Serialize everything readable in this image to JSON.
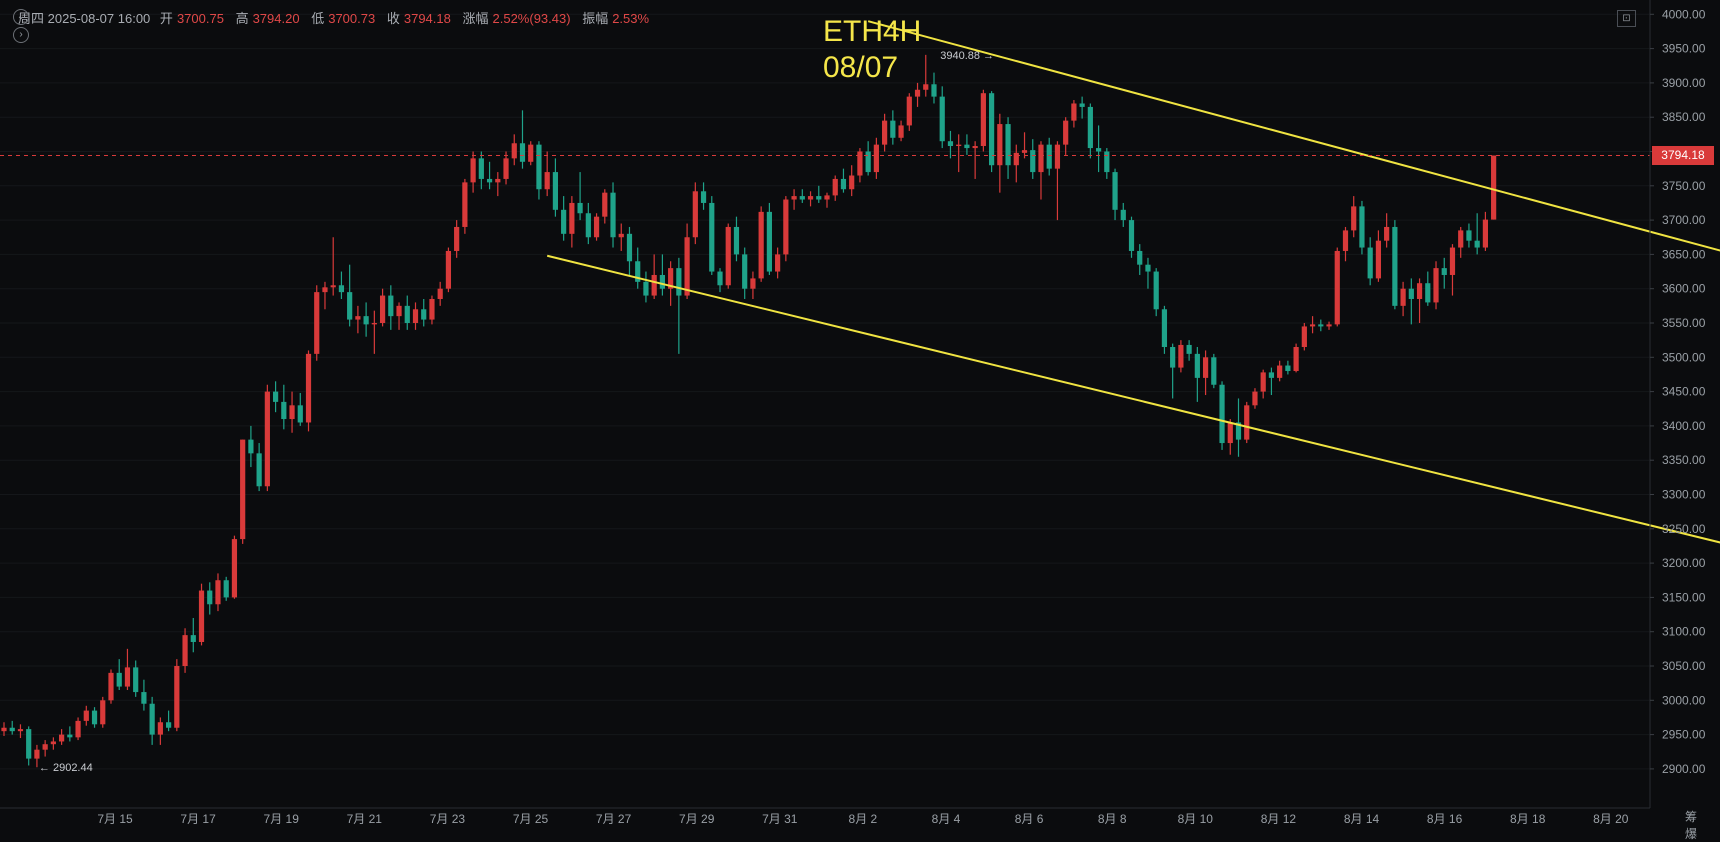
{
  "info_bar": {
    "day": "周四",
    "datetime": "2025-08-07 16:00",
    "open_label": "开",
    "open": "3700.75",
    "high_label": "高",
    "high": "3794.20",
    "low_label": "低",
    "low": "3700.73",
    "close_label": "收",
    "close": "3794.18",
    "change_label": "涨幅",
    "change": "2.52%(93.43)",
    "amplitude_label": "振幅",
    "amplitude": "2.53%"
  },
  "title_line1": "ETH4H",
  "title_line2": "08/07",
  "current_price": "3794.18",
  "corner_label": "筹 爆",
  "colors": {
    "up": "#d93a3a",
    "down": "#1fa38a",
    "trend": "#f0e442",
    "bg": "#0b0c0e",
    "title": "#f5e64a"
  },
  "chart_data": {
    "type": "candlestick",
    "interval": "4H",
    "x_ticks": [
      "7月 15",
      "7月 17",
      "7月 19",
      "7月 21",
      "7月 23",
      "7月 25",
      "7月 27",
      "7月 29",
      "7月 31",
      "8月 2",
      "8月 4",
      "8月 6",
      "8月 8",
      "8月 10",
      "8月 12",
      "8月 14",
      "8月 16",
      "8月 18",
      "8月 20"
    ],
    "y_ticks": [
      "4000.00",
      "3950.00",
      "3900.00",
      "3850.00",
      "3800.00",
      "3750.00",
      "3700.00",
      "3650.00",
      "3600.00",
      "3550.00",
      "3500.00",
      "3450.00",
      "3400.00",
      "3350.00",
      "3300.00",
      "3250.00",
      "3200.00",
      "3150.00",
      "3100.00",
      "3050.00",
      "3000.00",
      "2950.00",
      "2900.00"
    ],
    "ylim": [
      2860,
      4010
    ],
    "start_date": "7月 14",
    "annotations": [
      {
        "text": "3940.88",
        "candle": 122,
        "price": 3940.88,
        "side": "left"
      },
      {
        "text": "2902.44",
        "candle": 4,
        "price": 2902.44,
        "side": "right"
      }
    ],
    "trendlines": [
      {
        "from": {
          "candle": 105,
          "price": 3990
        },
        "to": {
          "candle": 253,
          "price": 3512
        }
      },
      {
        "from": {
          "candle": 66,
          "price": 3648
        },
        "to": {
          "candle": 229,
          "price": 3170
        }
      }
    ],
    "candles": [
      {
        "o": 2955,
        "h": 2968,
        "l": 2948,
        "c": 2960
      },
      {
        "o": 2960,
        "h": 2970,
        "l": 2950,
        "c": 2955
      },
      {
        "o": 2955,
        "h": 2965,
        "l": 2945,
        "c": 2958
      },
      {
        "o": 2958,
        "h": 2962,
        "l": 2905,
        "c": 2915
      },
      {
        "o": 2915,
        "h": 2935,
        "l": 2902.44,
        "c": 2928
      },
      {
        "o": 2928,
        "h": 2942,
        "l": 2918,
        "c": 2936
      },
      {
        "o": 2936,
        "h": 2946,
        "l": 2928,
        "c": 2940
      },
      {
        "o": 2940,
        "h": 2958,
        "l": 2935,
        "c": 2950
      },
      {
        "o": 2950,
        "h": 2962,
        "l": 2940,
        "c": 2946
      },
      {
        "o": 2946,
        "h": 2975,
        "l": 2942,
        "c": 2970
      },
      {
        "o": 2970,
        "h": 2992,
        "l": 2963,
        "c": 2985
      },
      {
        "o": 2985,
        "h": 2990,
        "l": 2960,
        "c": 2965
      },
      {
        "o": 2965,
        "h": 3005,
        "l": 2960,
        "c": 3000
      },
      {
        "o": 3000,
        "h": 3045,
        "l": 2995,
        "c": 3040
      },
      {
        "o": 3040,
        "h": 3060,
        "l": 3015,
        "c": 3020
      },
      {
        "o": 3020,
        "h": 3075,
        "l": 3015,
        "c": 3048
      },
      {
        "o": 3048,
        "h": 3058,
        "l": 3005,
        "c": 3012
      },
      {
        "o": 3012,
        "h": 3030,
        "l": 2985,
        "c": 2995
      },
      {
        "o": 2995,
        "h": 3005,
        "l": 2935,
        "c": 2950
      },
      {
        "o": 2950,
        "h": 2975,
        "l": 2935,
        "c": 2968
      },
      {
        "o": 2968,
        "h": 2985,
        "l": 2955,
        "c": 2960
      },
      {
        "o": 2960,
        "h": 3060,
        "l": 2955,
        "c": 3050
      },
      {
        "o": 3050,
        "h": 3105,
        "l": 3040,
        "c": 3095
      },
      {
        "o": 3095,
        "h": 3120,
        "l": 3070,
        "c": 3085
      },
      {
        "o": 3085,
        "h": 3170,
        "l": 3080,
        "c": 3160
      },
      {
        "o": 3160,
        "h": 3172,
        "l": 3125,
        "c": 3140
      },
      {
        "o": 3140,
        "h": 3185,
        "l": 3130,
        "c": 3175
      },
      {
        "o": 3175,
        "h": 3180,
        "l": 3145,
        "c": 3150
      },
      {
        "o": 3150,
        "h": 3240,
        "l": 3148,
        "c": 3235
      },
      {
        "o": 3235,
        "h": 3380,
        "l": 3228,
        "c": 3380
      },
      {
        "o": 3380,
        "h": 3400,
        "l": 3340,
        "c": 3360
      },
      {
        "o": 3360,
        "h": 3375,
        "l": 3305,
        "c": 3312
      },
      {
        "o": 3312,
        "h": 3460,
        "l": 3305,
        "c": 3450
      },
      {
        "o": 3450,
        "h": 3465,
        "l": 3420,
        "c": 3435
      },
      {
        "o": 3435,
        "h": 3460,
        "l": 3395,
        "c": 3410
      },
      {
        "o": 3410,
        "h": 3450,
        "l": 3390,
        "c": 3430
      },
      {
        "o": 3430,
        "h": 3448,
        "l": 3400,
        "c": 3405
      },
      {
        "o": 3405,
        "h": 3510,
        "l": 3392,
        "c": 3505
      },
      {
        "o": 3505,
        "h": 3605,
        "l": 3495,
        "c": 3595
      },
      {
        "o": 3595,
        "h": 3610,
        "l": 3570,
        "c": 3602
      },
      {
        "o": 3602,
        "h": 3675,
        "l": 3590,
        "c": 3605
      },
      {
        "o": 3605,
        "h": 3625,
        "l": 3585,
        "c": 3595
      },
      {
        "o": 3595,
        "h": 3635,
        "l": 3545,
        "c": 3555
      },
      {
        "o": 3555,
        "h": 3575,
        "l": 3535,
        "c": 3560
      },
      {
        "o": 3560,
        "h": 3580,
        "l": 3530,
        "c": 3548
      },
      {
        "o": 3548,
        "h": 3568,
        "l": 3505,
        "c": 3550
      },
      {
        "o": 3550,
        "h": 3600,
        "l": 3545,
        "c": 3590
      },
      {
        "o": 3590,
        "h": 3605,
        "l": 3540,
        "c": 3560
      },
      {
        "o": 3560,
        "h": 3580,
        "l": 3540,
        "c": 3575
      },
      {
        "o": 3575,
        "h": 3590,
        "l": 3540,
        "c": 3550
      },
      {
        "o": 3550,
        "h": 3580,
        "l": 3540,
        "c": 3570
      },
      {
        "o": 3570,
        "h": 3585,
        "l": 3545,
        "c": 3555
      },
      {
        "o": 3555,
        "h": 3590,
        "l": 3548,
        "c": 3585
      },
      {
        "o": 3585,
        "h": 3610,
        "l": 3575,
        "c": 3600
      },
      {
        "o": 3600,
        "h": 3660,
        "l": 3595,
        "c": 3655
      },
      {
        "o": 3655,
        "h": 3700,
        "l": 3645,
        "c": 3690
      },
      {
        "o": 3690,
        "h": 3760,
        "l": 3680,
        "c": 3755
      },
      {
        "o": 3755,
        "h": 3800,
        "l": 3740,
        "c": 3790
      },
      {
        "o": 3790,
        "h": 3800,
        "l": 3745,
        "c": 3760
      },
      {
        "o": 3760,
        "h": 3785,
        "l": 3745,
        "c": 3755
      },
      {
        "o": 3755,
        "h": 3770,
        "l": 3735,
        "c": 3760
      },
      {
        "o": 3760,
        "h": 3800,
        "l": 3752,
        "c": 3790
      },
      {
        "o": 3790,
        "h": 3825,
        "l": 3780,
        "c": 3812
      },
      {
        "o": 3812,
        "h": 3860,
        "l": 3775,
        "c": 3785
      },
      {
        "o": 3785,
        "h": 3815,
        "l": 3780,
        "c": 3810
      },
      {
        "o": 3810,
        "h": 3815,
        "l": 3730,
        "c": 3745
      },
      {
        "o": 3745,
        "h": 3800,
        "l": 3735,
        "c": 3770
      },
      {
        "o": 3770,
        "h": 3790,
        "l": 3705,
        "c": 3715
      },
      {
        "o": 3715,
        "h": 3735,
        "l": 3670,
        "c": 3680
      },
      {
        "o": 3680,
        "h": 3735,
        "l": 3660,
        "c": 3725
      },
      {
        "o": 3725,
        "h": 3770,
        "l": 3700,
        "c": 3710
      },
      {
        "o": 3710,
        "h": 3725,
        "l": 3665,
        "c": 3675
      },
      {
        "o": 3675,
        "h": 3710,
        "l": 3670,
        "c": 3705
      },
      {
        "o": 3705,
        "h": 3745,
        "l": 3695,
        "c": 3740
      },
      {
        "o": 3740,
        "h": 3755,
        "l": 3660,
        "c": 3675
      },
      {
        "o": 3675,
        "h": 3695,
        "l": 3655,
        "c": 3680
      },
      {
        "o": 3680,
        "h": 3690,
        "l": 3620,
        "c": 3640
      },
      {
        "o": 3640,
        "h": 3660,
        "l": 3600,
        "c": 3610
      },
      {
        "o": 3610,
        "h": 3625,
        "l": 3580,
        "c": 3590
      },
      {
        "o": 3590,
        "h": 3650,
        "l": 3585,
        "c": 3620
      },
      {
        "o": 3620,
        "h": 3650,
        "l": 3590,
        "c": 3600
      },
      {
        "o": 3600,
        "h": 3640,
        "l": 3575,
        "c": 3630
      },
      {
        "o": 3630,
        "h": 3645,
        "l": 3505,
        "c": 3590
      },
      {
        "o": 3590,
        "h": 3695,
        "l": 3585,
        "c": 3675
      },
      {
        "o": 3675,
        "h": 3755,
        "l": 3665,
        "c": 3742
      },
      {
        "o": 3742,
        "h": 3755,
        "l": 3715,
        "c": 3725
      },
      {
        "o": 3725,
        "h": 3735,
        "l": 3620,
        "c": 3625
      },
      {
        "o": 3625,
        "h": 3630,
        "l": 3595,
        "c": 3605
      },
      {
        "o": 3605,
        "h": 3695,
        "l": 3600,
        "c": 3690
      },
      {
        "o": 3690,
        "h": 3705,
        "l": 3640,
        "c": 3650
      },
      {
        "o": 3650,
        "h": 3660,
        "l": 3585,
        "c": 3600
      },
      {
        "o": 3600,
        "h": 3625,
        "l": 3585,
        "c": 3615
      },
      {
        "o": 3615,
        "h": 3720,
        "l": 3610,
        "c": 3712
      },
      {
        "o": 3712,
        "h": 3725,
        "l": 3620,
        "c": 3625
      },
      {
        "o": 3625,
        "h": 3660,
        "l": 3615,
        "c": 3650
      },
      {
        "o": 3650,
        "h": 3735,
        "l": 3640,
        "c": 3730
      },
      {
        "o": 3730,
        "h": 3745,
        "l": 3715,
        "c": 3735
      },
      {
        "o": 3735,
        "h": 3745,
        "l": 3725,
        "c": 3730
      },
      {
        "o": 3730,
        "h": 3742,
        "l": 3720,
        "c": 3735
      },
      {
        "o": 3735,
        "h": 3750,
        "l": 3725,
        "c": 3730
      },
      {
        "o": 3730,
        "h": 3740,
        "l": 3718,
        "c": 3736
      },
      {
        "o": 3736,
        "h": 3765,
        "l": 3728,
        "c": 3760
      },
      {
        "o": 3760,
        "h": 3775,
        "l": 3740,
        "c": 3745
      },
      {
        "o": 3745,
        "h": 3780,
        "l": 3735,
        "c": 3765
      },
      {
        "o": 3765,
        "h": 3805,
        "l": 3755,
        "c": 3800
      },
      {
        "o": 3800,
        "h": 3815,
        "l": 3765,
        "c": 3770
      },
      {
        "o": 3770,
        "h": 3820,
        "l": 3760,
        "c": 3810
      },
      {
        "o": 3810,
        "h": 3855,
        "l": 3800,
        "c": 3845
      },
      {
        "o": 3845,
        "h": 3860,
        "l": 3810,
        "c": 3820
      },
      {
        "o": 3820,
        "h": 3845,
        "l": 3815,
        "c": 3838
      },
      {
        "o": 3838,
        "h": 3885,
        "l": 3830,
        "c": 3880
      },
      {
        "o": 3880,
        "h": 3900,
        "l": 3865,
        "c": 3890
      },
      {
        "o": 3890,
        "h": 3940.88,
        "l": 3880,
        "c": 3898
      },
      {
        "o": 3898,
        "h": 3915,
        "l": 3870,
        "c": 3880
      },
      {
        "o": 3880,
        "h": 3895,
        "l": 3805,
        "c": 3815
      },
      {
        "o": 3815,
        "h": 3830,
        "l": 3790,
        "c": 3808
      },
      {
        "o": 3808,
        "h": 3825,
        "l": 3770,
        "c": 3810
      },
      {
        "o": 3810,
        "h": 3825,
        "l": 3795,
        "c": 3805
      },
      {
        "o": 3805,
        "h": 3815,
        "l": 3760,
        "c": 3808
      },
      {
        "o": 3808,
        "h": 3890,
        "l": 3800,
        "c": 3885
      },
      {
        "o": 3885,
        "h": 3888,
        "l": 3770,
        "c": 3780
      },
      {
        "o": 3780,
        "h": 3855,
        "l": 3740,
        "c": 3840
      },
      {
        "o": 3840,
        "h": 3850,
        "l": 3760,
        "c": 3780
      },
      {
        "o": 3780,
        "h": 3810,
        "l": 3755,
        "c": 3798
      },
      {
        "o": 3798,
        "h": 3828,
        "l": 3790,
        "c": 3802
      },
      {
        "o": 3802,
        "h": 3818,
        "l": 3760,
        "c": 3770
      },
      {
        "o": 3770,
        "h": 3815,
        "l": 3730,
        "c": 3810
      },
      {
        "o": 3810,
        "h": 3820,
        "l": 3765,
        "c": 3775
      },
      {
        "o": 3775,
        "h": 3815,
        "l": 3700,
        "c": 3810
      },
      {
        "o": 3810,
        "h": 3850,
        "l": 3795,
        "c": 3845
      },
      {
        "o": 3845,
        "h": 3875,
        "l": 3835,
        "c": 3870
      },
      {
        "o": 3870,
        "h": 3880,
        "l": 3848,
        "c": 3865
      },
      {
        "o": 3865,
        "h": 3870,
        "l": 3790,
        "c": 3805
      },
      {
        "o": 3805,
        "h": 3838,
        "l": 3770,
        "c": 3800
      },
      {
        "o": 3800,
        "h": 3805,
        "l": 3760,
        "c": 3770
      },
      {
        "o": 3770,
        "h": 3775,
        "l": 3700,
        "c": 3715
      },
      {
        "o": 3715,
        "h": 3725,
        "l": 3690,
        "c": 3700
      },
      {
        "o": 3700,
        "h": 3705,
        "l": 3645,
        "c": 3655
      },
      {
        "o": 3655,
        "h": 3665,
        "l": 3620,
        "c": 3635
      },
      {
        "o": 3635,
        "h": 3645,
        "l": 3600,
        "c": 3625
      },
      {
        "o": 3625,
        "h": 3630,
        "l": 3560,
        "c": 3570
      },
      {
        "o": 3570,
        "h": 3575,
        "l": 3505,
        "c": 3515
      },
      {
        "o": 3515,
        "h": 3520,
        "l": 3440,
        "c": 3485
      },
      {
        "o": 3485,
        "h": 3525,
        "l": 3478,
        "c": 3518
      },
      {
        "o": 3518,
        "h": 3525,
        "l": 3495,
        "c": 3505
      },
      {
        "o": 3505,
        "h": 3515,
        "l": 3435,
        "c": 3470
      },
      {
        "o": 3470,
        "h": 3510,
        "l": 3445,
        "c": 3500
      },
      {
        "o": 3500,
        "h": 3505,
        "l": 3455,
        "c": 3460
      },
      {
        "o": 3460,
        "h": 3465,
        "l": 3365,
        "c": 3375
      },
      {
        "o": 3375,
        "h": 3410,
        "l": 3358,
        "c": 3405
      },
      {
        "o": 3405,
        "h": 3440,
        "l": 3355,
        "c": 3380
      },
      {
        "o": 3380,
        "h": 3435,
        "l": 3375,
        "c": 3430
      },
      {
        "o": 3430,
        "h": 3455,
        "l": 3425,
        "c": 3450
      },
      {
        "o": 3450,
        "h": 3482,
        "l": 3440,
        "c": 3478
      },
      {
        "o": 3478,
        "h": 3485,
        "l": 3445,
        "c": 3470
      },
      {
        "o": 3470,
        "h": 3495,
        "l": 3465,
        "c": 3488
      },
      {
        "o": 3488,
        "h": 3495,
        "l": 3475,
        "c": 3480
      },
      {
        "o": 3480,
        "h": 3520,
        "l": 3478,
        "c": 3515
      },
      {
        "o": 3515,
        "h": 3550,
        "l": 3510,
        "c": 3545
      },
      {
        "o": 3545,
        "h": 3560,
        "l": 3535,
        "c": 3548
      },
      {
        "o": 3548,
        "h": 3555,
        "l": 3538,
        "c": 3545
      },
      {
        "o": 3545,
        "h": 3552,
        "l": 3540,
        "c": 3548
      },
      {
        "o": 3548,
        "h": 3660,
        "l": 3545,
        "c": 3655
      },
      {
        "o": 3655,
        "h": 3690,
        "l": 3640,
        "c": 3685
      },
      {
        "o": 3685,
        "h": 3735,
        "l": 3675,
        "c": 3720
      },
      {
        "o": 3720,
        "h": 3728,
        "l": 3650,
        "c": 3660
      },
      {
        "o": 3660,
        "h": 3675,
        "l": 3605,
        "c": 3615
      },
      {
        "o": 3615,
        "h": 3685,
        "l": 3610,
        "c": 3670
      },
      {
        "o": 3670,
        "h": 3710,
        "l": 3660,
        "c": 3690
      },
      {
        "o": 3690,
        "h": 3700,
        "l": 3570,
        "c": 3575
      },
      {
        "o": 3575,
        "h": 3610,
        "l": 3560,
        "c": 3600
      },
      {
        "o": 3600,
        "h": 3615,
        "l": 3548,
        "c": 3585
      },
      {
        "o": 3585,
        "h": 3615,
        "l": 3550,
        "c": 3608
      },
      {
        "o": 3608,
        "h": 3625,
        "l": 3575,
        "c": 3580
      },
      {
        "o": 3580,
        "h": 3640,
        "l": 3570,
        "c": 3630
      },
      {
        "o": 3630,
        "h": 3645,
        "l": 3600,
        "c": 3620
      },
      {
        "o": 3620,
        "h": 3665,
        "l": 3590,
        "c": 3660
      },
      {
        "o": 3660,
        "h": 3690,
        "l": 3645,
        "c": 3685
      },
      {
        "o": 3685,
        "h": 3695,
        "l": 3660,
        "c": 3670
      },
      {
        "o": 3670,
        "h": 3710,
        "l": 3650,
        "c": 3660
      },
      {
        "o": 3660,
        "h": 3712,
        "l": 3655,
        "c": 3700.75
      },
      {
        "o": 3700.75,
        "h": 3794.2,
        "l": 3700.73,
        "c": 3794.18
      }
    ]
  }
}
